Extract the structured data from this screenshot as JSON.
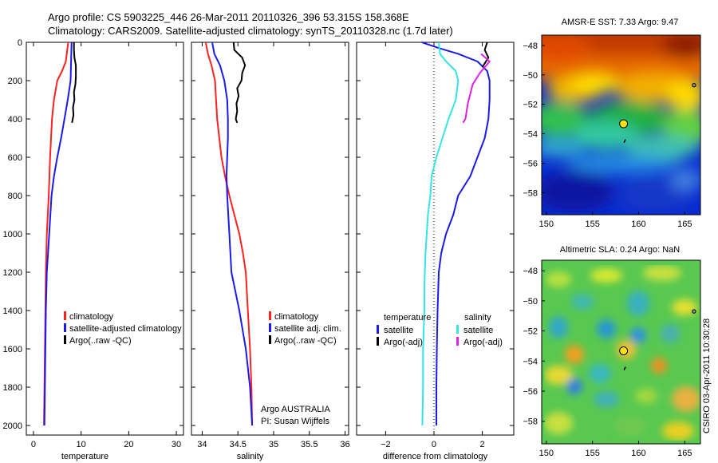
{
  "header": {
    "line1": "Argo profile: CS 5903225_446 26-Mar-2011 20110326_396 53.315S 158.368E",
    "line2": "Climatology: CARS2009. Satellite-adjusted climatology: synTS_20110328.nc (1.7d later)"
  },
  "colors": {
    "climatology": "#ff2020",
    "satellite": "#1a1aee",
    "argo": "#000000",
    "sat_salinity": "#33e5e5",
    "argo_salinity": "#e020e0",
    "zero_line": "#000000"
  },
  "chart_data": [
    {
      "id": "temperature",
      "type": "line",
      "xlabel": "temperature",
      "ylabel": "",
      "xlim": [
        -1.5,
        31.5
      ],
      "ylim": [
        2050,
        0
      ],
      "x_ticks": [
        0,
        10,
        20,
        30
      ],
      "y_ticks": [
        0,
        200,
        400,
        600,
        800,
        1000,
        1200,
        1400,
        1600,
        1800,
        2000
      ],
      "legend": [
        "climatology",
        "satellite-adjusted climatology",
        "Argo(..raw -QC)"
      ],
      "series": [
        {
          "name": "climatology",
          "color": "#ff2020",
          "points": [
            [
              7.3,
              0
            ],
            [
              6.8,
              100
            ],
            [
              6.0,
              150
            ],
            [
              5.0,
              200
            ],
            [
              4.3,
              300
            ],
            [
              3.9,
              400
            ],
            [
              3.5,
              600
            ],
            [
              3.2,
              800
            ],
            [
              2.8,
              1000
            ],
            [
              2.6,
              1200
            ],
            [
              2.5,
              1400
            ],
            [
              2.4,
              1600
            ],
            [
              2.3,
              1800
            ],
            [
              2.2,
              2000
            ]
          ]
        },
        {
          "name": "satellite-adjusted climatology",
          "color": "#1a1aee",
          "points": [
            [
              8.0,
              0
            ],
            [
              7.9,
              100
            ],
            [
              7.8,
              200
            ],
            [
              7.2,
              300
            ],
            [
              6.5,
              400
            ],
            [
              5.8,
              500
            ],
            [
              5.0,
              600
            ],
            [
              4.3,
              700
            ],
            [
              3.8,
              800
            ],
            [
              3.3,
              1000
            ],
            [
              2.8,
              1200
            ],
            [
              2.6,
              1400
            ],
            [
              2.5,
              1600
            ],
            [
              2.4,
              1800
            ],
            [
              2.3,
              2000
            ]
          ]
        },
        {
          "name": "Argo(..raw -QC)",
          "color": "#000000",
          "points": [
            [
              8.5,
              0
            ],
            [
              8.5,
              40
            ],
            [
              8.6,
              80
            ],
            [
              8.9,
              120
            ],
            [
              8.9,
              180
            ],
            [
              8.8,
              220
            ],
            [
              8.5,
              260
            ],
            [
              8.6,
              300
            ],
            [
              8.3,
              340
            ],
            [
              8.4,
              380
            ],
            [
              8.1,
              420
            ]
          ]
        }
      ]
    },
    {
      "id": "salinity",
      "type": "line",
      "xlabel": "salinity",
      "ylabel": "",
      "xlim": [
        33.85,
        36.05
      ],
      "ylim": [
        2050,
        0
      ],
      "x_ticks": [
        34,
        34.5,
        35,
        35.5,
        36
      ],
      "x_tick_labels": [
        "34",
        "34.5",
        "35",
        "35.5",
        "36"
      ],
      "y_ticks": [
        0,
        200,
        400,
        600,
        800,
        1000,
        1200,
        1400,
        1600,
        1800,
        2000
      ],
      "legend": [
        "climatology",
        "satellite adj. clim.",
        "Argo(..raw -QC)"
      ],
      "annotation": [
        "Argo AUSTRALIA",
        "PI: Susan Wijffels"
      ],
      "series": [
        {
          "name": "climatology",
          "color": "#ff2020",
          "points": [
            [
              34.05,
              0
            ],
            [
              34.08,
              60
            ],
            [
              34.13,
              120
            ],
            [
              34.18,
              200
            ],
            [
              34.21,
              400
            ],
            [
              34.27,
              600
            ],
            [
              34.32,
              700
            ],
            [
              34.38,
              800
            ],
            [
              34.45,
              900
            ],
            [
              34.52,
              1000
            ],
            [
              34.57,
              1100
            ],
            [
              34.61,
              1200
            ],
            [
              34.64,
              1400
            ],
            [
              34.67,
              1600
            ],
            [
              34.69,
              1800
            ],
            [
              34.7,
              2000
            ]
          ]
        },
        {
          "name": "satellite adj. clim.",
          "color": "#1a1aee",
          "points": [
            [
              34.14,
              0
            ],
            [
              34.17,
              60
            ],
            [
              34.25,
              120
            ],
            [
              34.31,
              200
            ],
            [
              34.35,
              300
            ],
            [
              34.36,
              400
            ],
            [
              34.36,
              500
            ],
            [
              34.35,
              600
            ],
            [
              34.34,
              700
            ],
            [
              34.35,
              800
            ],
            [
              34.38,
              1000
            ],
            [
              34.41,
              1200
            ],
            [
              34.52,
              1400
            ],
            [
              34.61,
              1600
            ],
            [
              34.67,
              1800
            ],
            [
              34.7,
              2000
            ]
          ]
        },
        {
          "name": "Argo(..raw -QC)",
          "color": "#000000",
          "points": [
            [
              34.44,
              0
            ],
            [
              34.45,
              40
            ],
            [
              34.56,
              80
            ],
            [
              34.6,
              120
            ],
            [
              34.56,
              160
            ],
            [
              34.55,
              200
            ],
            [
              34.49,
              240
            ],
            [
              34.51,
              280
            ],
            [
              34.48,
              320
            ],
            [
              34.49,
              360
            ],
            [
              34.47,
              400
            ],
            [
              34.49,
              420
            ]
          ]
        }
      ]
    },
    {
      "id": "difference",
      "type": "line",
      "xlabel": "difference from climatology",
      "ylabel": "",
      "xlim": [
        -3.2,
        3.3
      ],
      "ylim": [
        2050,
        0
      ],
      "x_ticks": [
        -2,
        0,
        2
      ],
      "y_ticks": [
        0,
        200,
        400,
        600,
        800,
        1000,
        1200,
        1400,
        1600,
        1800,
        2000
      ],
      "legend_headers": [
        "temperature",
        "salinity"
      ],
      "legend": [
        "satellite",
        "Argo(-adj)",
        "satellite",
        "Argo(-adj)"
      ],
      "series": [
        {
          "name": "satellite",
          "color": "#1a1aee",
          "points": [
            [
              -0.5,
              0
            ],
            [
              0.2,
              30
            ],
            [
              1.0,
              60
            ],
            [
              1.8,
              100
            ],
            [
              2.2,
              150
            ],
            [
              2.3,
              200
            ],
            [
              2.3,
              300
            ],
            [
              2.25,
              400
            ],
            [
              2.1,
              500
            ],
            [
              1.8,
              600
            ],
            [
              1.5,
              700
            ],
            [
              1.0,
              800
            ],
            [
              0.8,
              900
            ],
            [
              0.5,
              1000
            ],
            [
              0.3,
              1100
            ],
            [
              0.2,
              1200
            ],
            [
              0.15,
              1400
            ],
            [
              0.12,
              1600
            ],
            [
              0.1,
              1800
            ],
            [
              0.1,
              2000
            ]
          ]
        },
        {
          "name": "Argo(-adj)",
          "color": "#000000",
          "points": [
            [
              2.2,
              0
            ],
            [
              2.1,
              40
            ],
            [
              2.25,
              80
            ],
            [
              2.1,
              110
            ],
            [
              2.0,
              130
            ]
          ]
        },
        {
          "name": "satellite",
          "color": "#33e5e5",
          "points": [
            [
              0.2,
              0
            ],
            [
              0.25,
              60
            ],
            [
              0.5,
              100
            ],
            [
              0.9,
              150
            ],
            [
              1.0,
              200
            ],
            [
              0.9,
              300
            ],
            [
              0.6,
              400
            ],
            [
              0.35,
              500
            ],
            [
              0.1,
              600
            ],
            [
              -0.1,
              700
            ],
            [
              -0.15,
              800
            ],
            [
              -0.25,
              900
            ],
            [
              -0.3,
              1000
            ],
            [
              -0.35,
              1100
            ],
            [
              -0.38,
              1200
            ],
            [
              -0.4,
              1300
            ],
            [
              -0.4,
              1400
            ],
            [
              -0.45,
              1600
            ],
            [
              -0.45,
              1800
            ],
            [
              -0.48,
              2000
            ]
          ]
        },
        {
          "name": "Argo(-adj)",
          "color": "#e020e0",
          "points": [
            [
              1.95,
              60
            ],
            [
              2.3,
              100
            ],
            [
              1.9,
              160
            ],
            [
              1.6,
              220
            ],
            [
              1.4,
              320
            ],
            [
              1.3,
              400
            ],
            [
              1.2,
              420
            ]
          ]
        }
      ]
    }
  ],
  "maps": [
    {
      "id": "sst",
      "title": "AMSR-E SST: 7.33 Argo: 9.47",
      "x_ticks": [
        150,
        155,
        160,
        165
      ],
      "y_ticks": [
        -48,
        -50,
        -52,
        -54,
        -56,
        -58
      ],
      "xlim": [
        149.5,
        166.7
      ],
      "ylim": [
        -59.5,
        -47.3
      ],
      "marker": {
        "lon": 158.37,
        "lat": -53.32
      }
    },
    {
      "id": "sla",
      "title": "Altimetric SLA: 0.24 Argo: NaN",
      "x_ticks": [
        150,
        155,
        160,
        165
      ],
      "y_ticks": [
        -48,
        -50,
        -52,
        -54,
        -56,
        -58
      ],
      "xlim": [
        149.5,
        166.7
      ],
      "ylim": [
        -59.5,
        -47.3
      ],
      "marker": {
        "lon": 158.37,
        "lat": -53.32
      }
    }
  ],
  "footer_stamp": "CSIRO 03-Apr-2011 10:30:28"
}
